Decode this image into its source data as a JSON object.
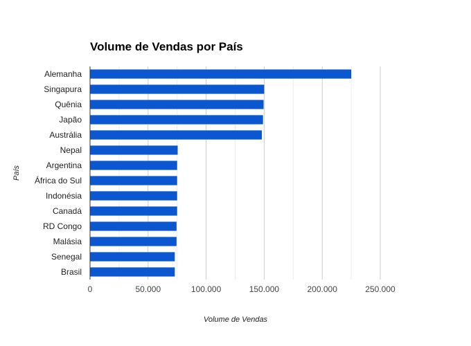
{
  "chart_data": {
    "type": "bar",
    "orientation": "horizontal",
    "title": "Volume de Vendas por País",
    "xlabel": "Volume de Vendas",
    "ylabel": "País",
    "categories": [
      "Alemanha",
      "Singapura",
      "Quênia",
      "Japão",
      "Austrália",
      "Nepal",
      "Argentina",
      "África do Sul",
      "Indonésia",
      "Canadá",
      "RD Congo",
      "Malásia",
      "Senegal",
      "Brasil"
    ],
    "values": [
      225000,
      150000,
      149500,
      149000,
      148000,
      75500,
      75000,
      75000,
      75000,
      75000,
      74500,
      74500,
      73000,
      73000
    ],
    "xlim": [
      0,
      265000
    ],
    "xticks": [
      0,
      50000,
      100000,
      150000,
      200000,
      250000
    ],
    "xtick_labels": [
      "0",
      "50.000",
      "100.000",
      "150.000",
      "200.000",
      "250.000"
    ],
    "grid": true,
    "bar_color": "#0b57d0"
  }
}
